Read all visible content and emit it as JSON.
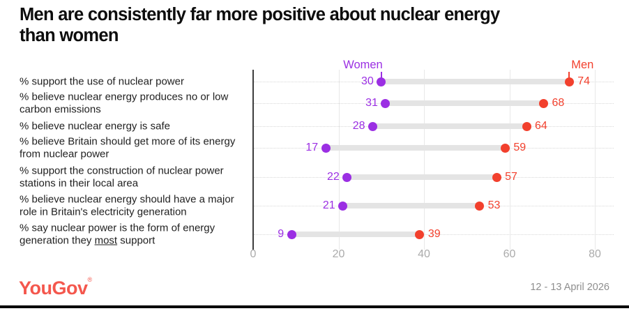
{
  "title": "Men are consistently far more positive about nuclear energy\nthan women",
  "footer": {
    "logo": "YouGov",
    "reg_mark": "®",
    "date": "12 - 13 April 2026",
    "logo_color": "#F4574D"
  },
  "chart_data": {
    "type": "dumbbell",
    "title": "Men are consistently far more positive about nuclear energy than women",
    "series_labels": {
      "women": "Women",
      "men": "Men"
    },
    "colors": {
      "women": "#9B2FE3",
      "men": "#F2402D",
      "connector_bar": "#E4E4E4",
      "axis_label": "#ABABAB"
    },
    "x_axis": {
      "ticks": [
        0,
        20,
        40,
        60,
        80
      ],
      "min": 0,
      "max": 84.5,
      "grid": true
    },
    "legend_position": "top, above first row dots",
    "rows": [
      {
        "label": "% support the use of nuclear power",
        "women": 30,
        "men": 74
      },
      {
        "label": "% believe nuclear energy produces no or low\ncarbon emissions",
        "women": 31,
        "men": 68
      },
      {
        "label": "% believe nuclear energy is safe",
        "women": 28,
        "men": 64
      },
      {
        "label": "% believe Britain should get more of its energy\nfrom nuclear power",
        "women": 17,
        "men": 59
      },
      {
        "label": "% support the construction of nuclear power\nstations in their local area",
        "women": 22,
        "men": 57
      },
      {
        "label": "% believe nuclear energy should have a major\nrole in Britain's electricity generation",
        "women": 21,
        "men": 53
      },
      {
        "label": "% say nuclear power is the form of energy\ngeneration they most support",
        "women": 9,
        "men": 39,
        "underline_word": "most"
      }
    ]
  }
}
